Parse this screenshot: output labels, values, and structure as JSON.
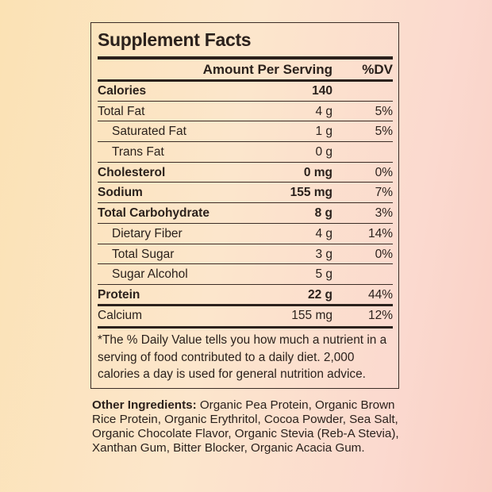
{
  "title": "Supplement Facts",
  "header": {
    "amount": "Amount Per Serving",
    "dv": "%DV"
  },
  "rows": [
    {
      "name": "Calories",
      "amount": "140",
      "dv": "",
      "style": "bold"
    },
    {
      "name": "Total Fat",
      "amount": "4 g",
      "dv": "5%",
      "style": ""
    },
    {
      "name": "Saturated Fat",
      "amount": "1 g",
      "dv": "5%",
      "style": "sub"
    },
    {
      "name": "Trans Fat",
      "amount": "0 g",
      "dv": "",
      "style": "sub"
    },
    {
      "name": "Cholesterol",
      "amount": "0 mg",
      "dv": "0%",
      "style": "bold"
    },
    {
      "name": "Sodium",
      "amount": "155 mg",
      "dv": "7%",
      "style": "bold"
    },
    {
      "name": "Total Carbohydrate",
      "amount": "8 g",
      "dv": "3%",
      "style": "bold"
    },
    {
      "name": "Dietary Fiber",
      "amount": "4 g",
      "dv": "14%",
      "style": "sub"
    },
    {
      "name": "Total Sugar",
      "amount": "3 g",
      "dv": "0%",
      "style": "sub"
    },
    {
      "name": "Sugar Alcohol",
      "amount": "5 g",
      "dv": "",
      "style": "sub"
    },
    {
      "name": "Protein",
      "amount": "22 g",
      "dv": "44%",
      "style": "bold"
    },
    {
      "name": "Calcium",
      "amount": "155 mg",
      "dv": "12%",
      "style": ""
    }
  ],
  "footnote": "*The % Daily Value tells you how much a nutrient in a serving of food contributed to a daily diet. 2,000 calories a day is used for general nutrition advice.",
  "ingredients": {
    "label": "Other Ingredients:",
    "text": " Organic Pea Protein, Organic Brown Rice Protein, Organic Erythritol, Cocoa Powder, Sea Salt, Organic Chocolate Flavor, Organic Stevia (Reb-A Stevia), Xanthan Gum, Bitter Blocker, Organic Acacia Gum."
  },
  "colors": {
    "text": "#2b211c",
    "background_left": "#fbe2b4",
    "background_right": "#f9cfc4"
  }
}
